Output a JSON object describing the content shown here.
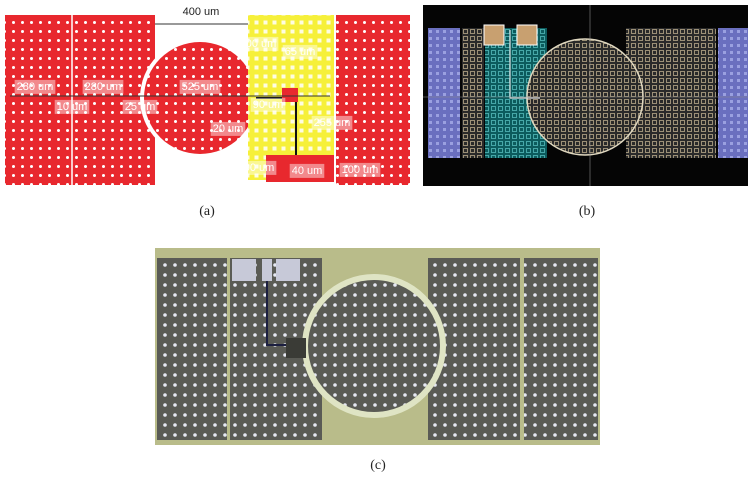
{
  "panel_a": {
    "dimension_labels": [
      "400 um",
      "100 um",
      "65 um",
      "280 um",
      "280 um",
      "10 um",
      "25 um",
      "525 um",
      "90 um",
      "255 um",
      "20 um",
      "100 um",
      "40 um",
      "100 um"
    ]
  },
  "captions": [
    "(a)",
    "(b)",
    "(c)"
  ]
}
